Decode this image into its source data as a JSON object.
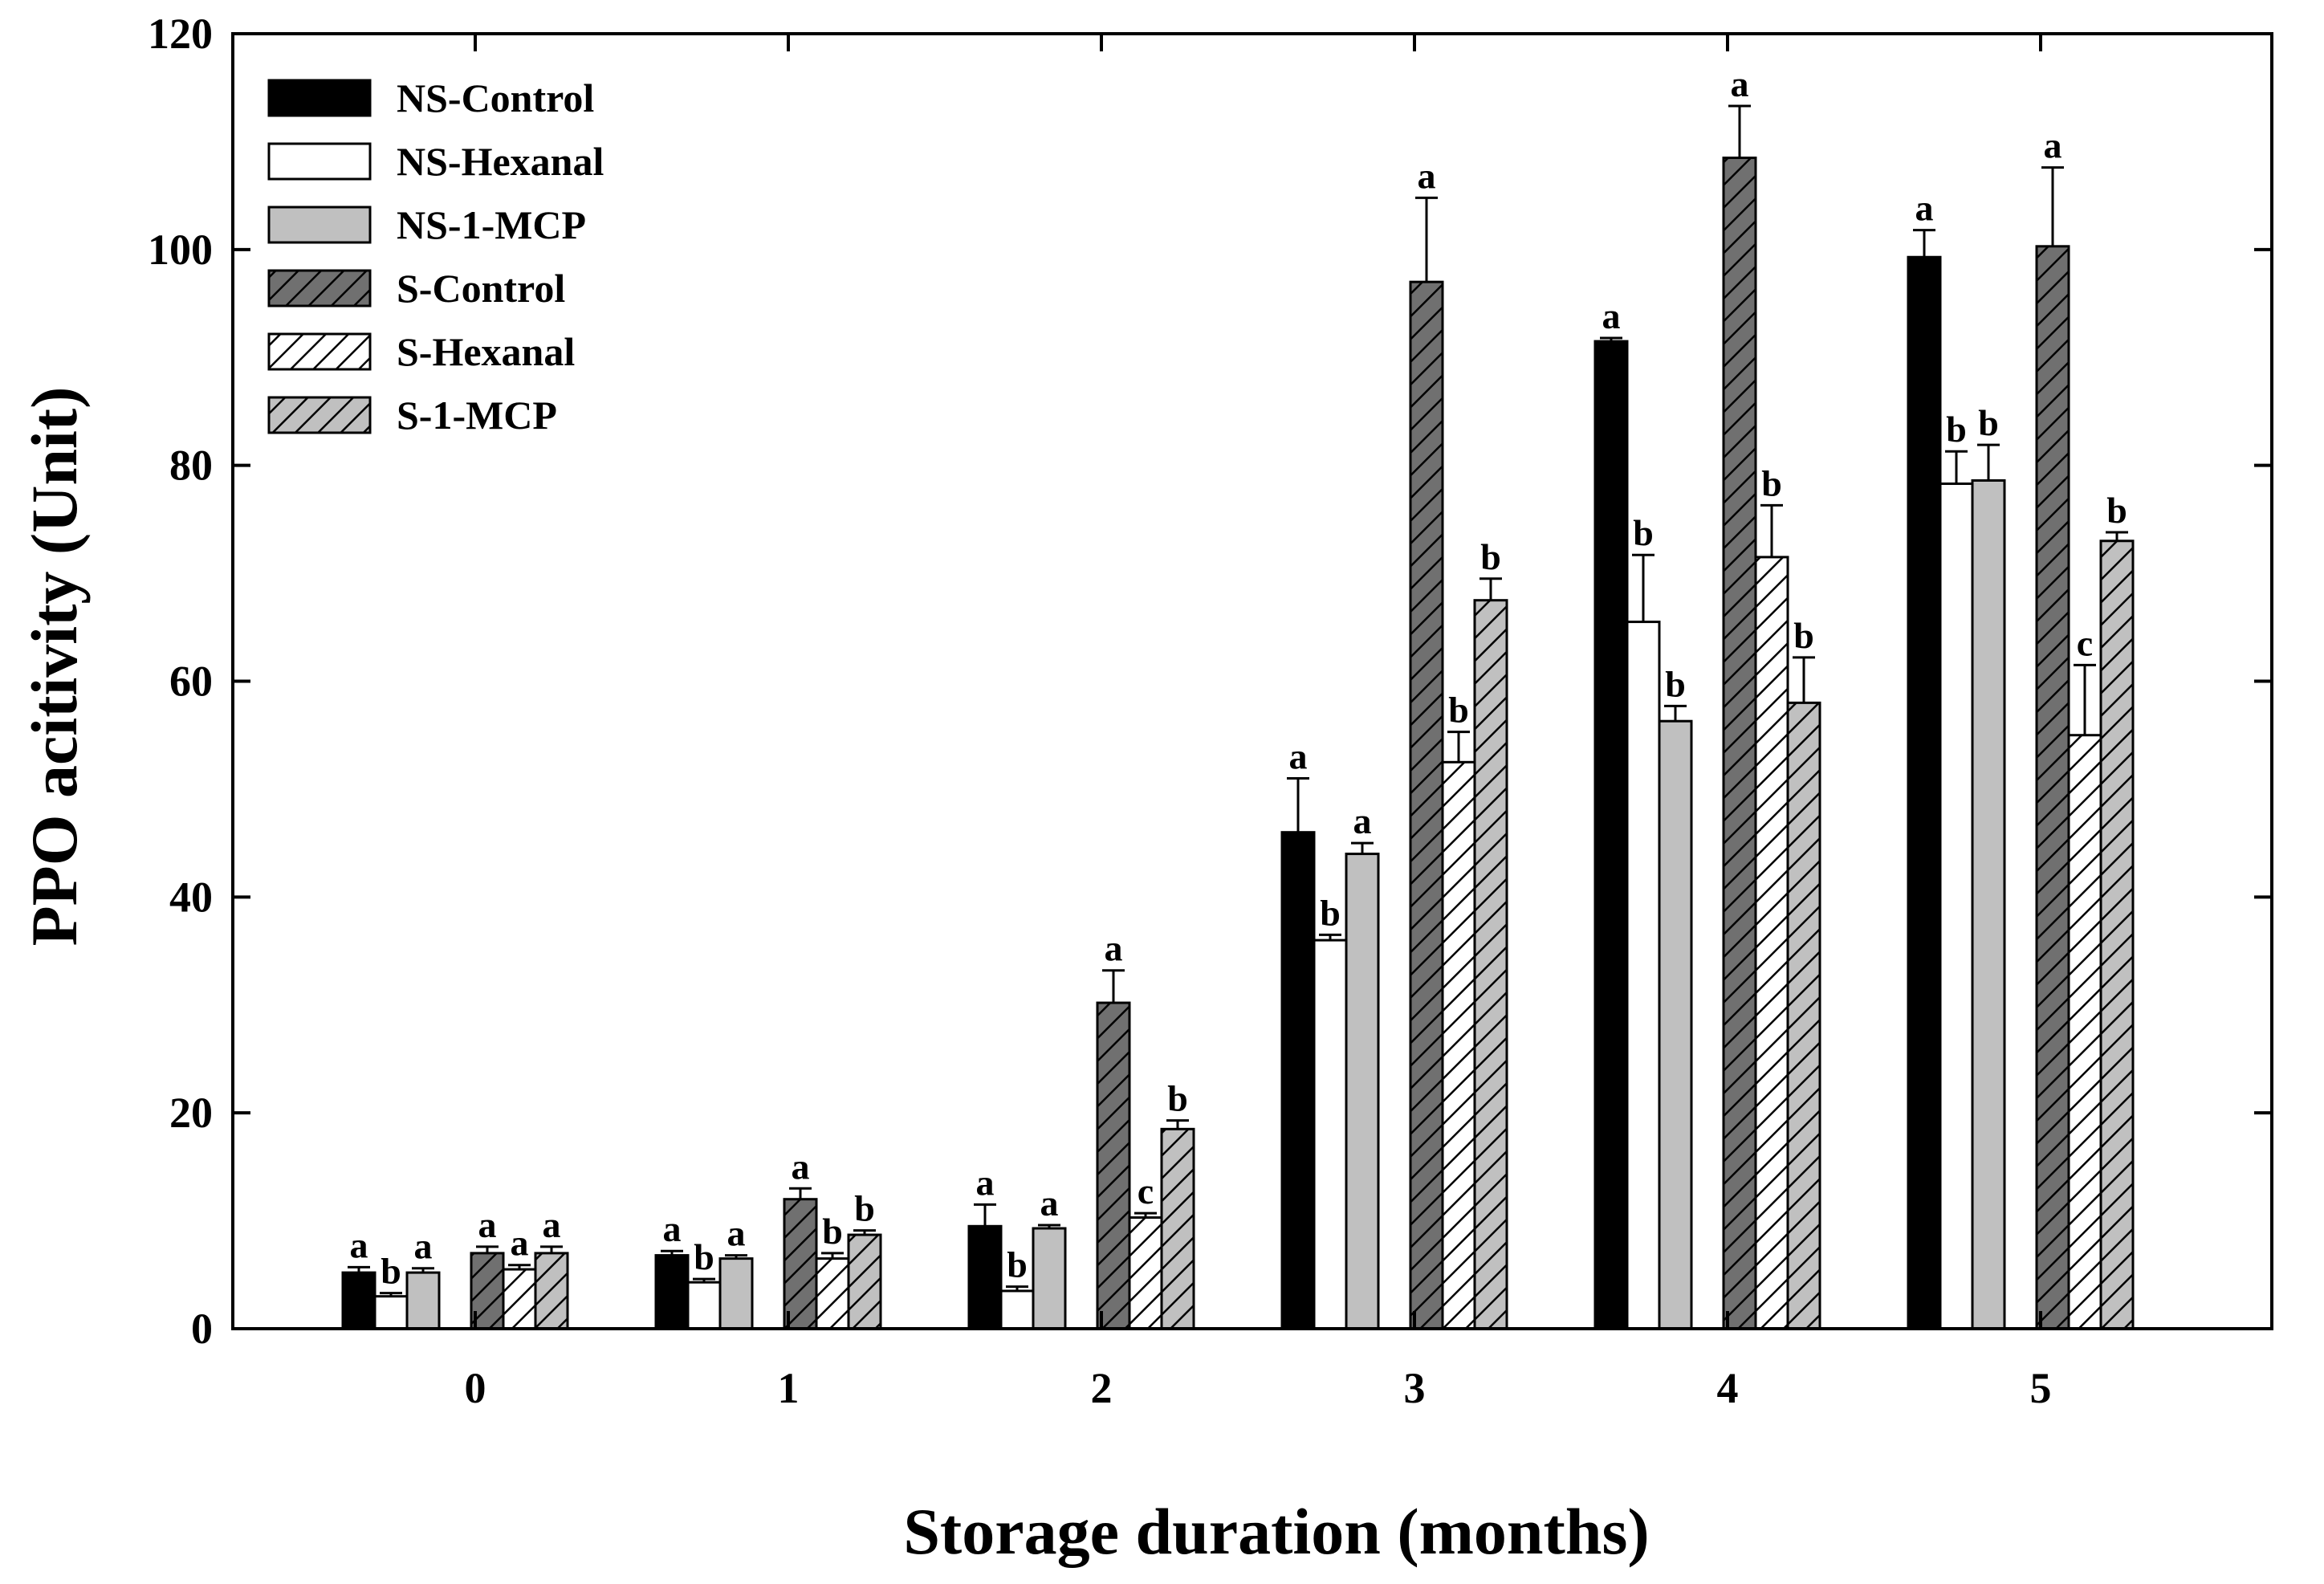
{
  "chart_data": {
    "type": "bar",
    "title": "",
    "xlabel": "Storage duration (months)",
    "ylabel": "PPO acitivity (Unit)",
    "ylim": [
      0,
      120
    ],
    "yticks": [
      0,
      20,
      40,
      60,
      80,
      100,
      120
    ],
    "categories": [
      "0",
      "1",
      "2",
      "3",
      "4",
      "5"
    ],
    "legend_position": "top-left",
    "series": [
      {
        "name": "NS-Control",
        "style": "solid-black",
        "values": [
          5.2,
          6.8,
          9.5,
          46.0,
          91.5,
          99.3
        ],
        "errors": [
          0.5,
          0.4,
          2.0,
          5.0,
          0.3,
          2.5
        ],
        "labels": [
          "a",
          "a",
          "a",
          "a",
          "a",
          "a"
        ]
      },
      {
        "name": "NS-Hexanal",
        "style": "white",
        "values": [
          3.0,
          4.3,
          3.5,
          36.0,
          65.5,
          78.3
        ],
        "errors": [
          0.3,
          0.3,
          0.4,
          0.5,
          6.2,
          3.0
        ],
        "labels": [
          "b",
          "b",
          "b",
          "b",
          "b",
          "b"
        ]
      },
      {
        "name": "NS-1-MCP",
        "style": "light-gray",
        "values": [
          5.2,
          6.5,
          9.3,
          44.0,
          56.3,
          78.6
        ],
        "errors": [
          0.4,
          0.3,
          0.3,
          1.0,
          1.4,
          3.3
        ],
        "labels": [
          "a",
          "a",
          "a",
          "a",
          "b",
          "b"
        ]
      },
      {
        "name": "S-Control",
        "style": "dark-gray-hatched",
        "values": [
          7.0,
          12.0,
          30.2,
          97.0,
          108.5,
          100.3
        ],
        "errors": [
          0.6,
          1.0,
          3.0,
          7.8,
          4.8,
          7.3
        ],
        "labels": [
          "a",
          "a",
          "a",
          "a",
          "a",
          "a"
        ]
      },
      {
        "name": "S-Hexanal",
        "style": "white-hatched",
        "values": [
          5.5,
          6.5,
          10.3,
          52.5,
          71.5,
          55.0
        ],
        "errors": [
          0.4,
          0.5,
          0.4,
          2.8,
          4.8,
          6.5
        ],
        "labels": [
          "a",
          "b",
          "c",
          "b",
          "b",
          "c"
        ]
      },
      {
        "name": "S-1-MCP",
        "style": "light-gray-hatched",
        "values": [
          7.0,
          8.7,
          18.5,
          67.5,
          58.0,
          73.0
        ],
        "errors": [
          0.6,
          0.4,
          0.8,
          2.0,
          4.2,
          0.8
        ],
        "labels": [
          "a",
          "b",
          "b",
          "b",
          "b",
          "b"
        ]
      }
    ],
    "colors": {
      "axis": "#000000",
      "solid_black": "#000000",
      "white": "#ffffff",
      "light_gray": "#c0c0c0",
      "dark_gray": "#707070"
    }
  }
}
